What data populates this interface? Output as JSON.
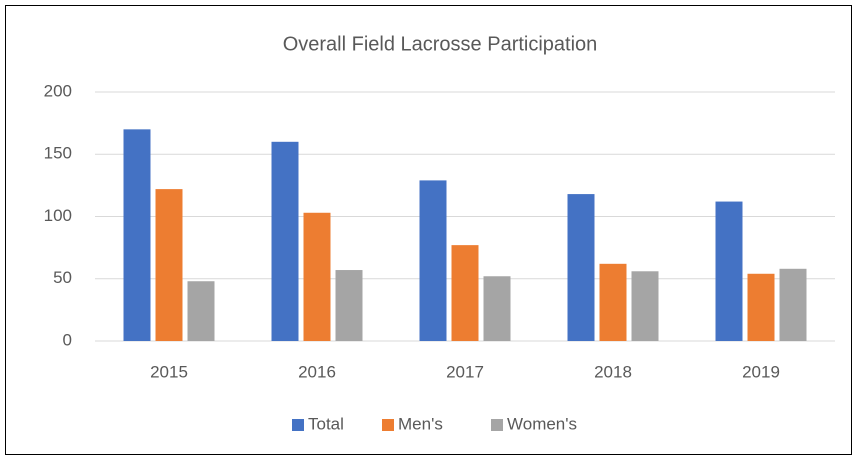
{
  "chart_data": {
    "type": "bar",
    "title": "Overall Field Lacrosse Participation",
    "categories": [
      "2015",
      "2016",
      "2017",
      "2018",
      "2019"
    ],
    "series": [
      {
        "name": "Total",
        "color": "#4472c4",
        "values": [
          170,
          160,
          129,
          118,
          112
        ]
      },
      {
        "name": "Men's",
        "color": "#ed7d31",
        "values": [
          122,
          103,
          77,
          62,
          54
        ]
      },
      {
        "name": "Women's",
        "color": "#a5a5a5",
        "values": [
          48,
          57,
          52,
          56,
          58
        ]
      }
    ],
    "ylim": [
      0,
      200
    ],
    "yticks": [
      0,
      50,
      100,
      150,
      200
    ],
    "grid": true,
    "legend": "bottom"
  }
}
